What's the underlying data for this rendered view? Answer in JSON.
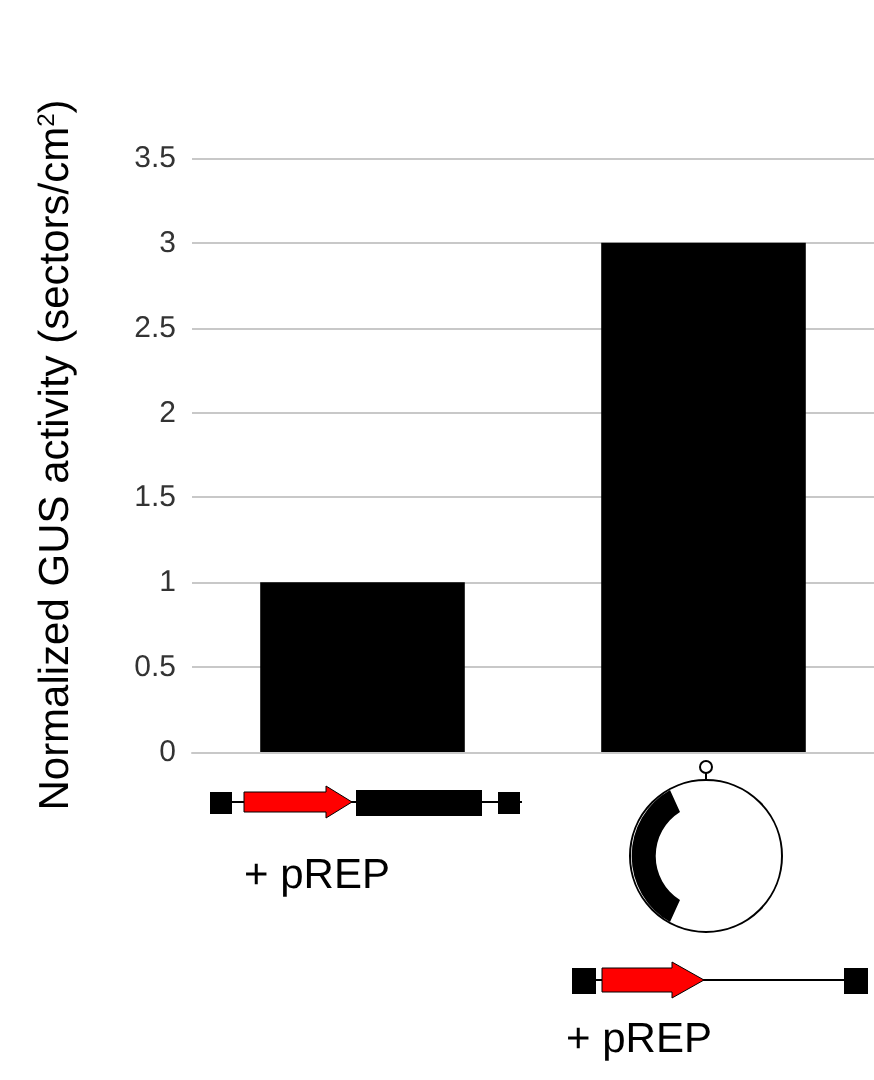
{
  "chart_data": {
    "type": "bar",
    "ylabel": "Normalized GUS activity (sectors/cm$^{2}$)",
    "categories": [
      null,
      null
    ],
    "values": [
      1,
      3
    ],
    "color": "#000000",
    "ylim": [
      0,
      3.5
    ],
    "yticks": [
      0,
      0.5,
      1,
      1.5,
      2,
      2.5,
      3,
      3.5
    ],
    "grid": "y",
    "annotations": [
      "+ pREP",
      "+ pREP"
    ]
  }
}
